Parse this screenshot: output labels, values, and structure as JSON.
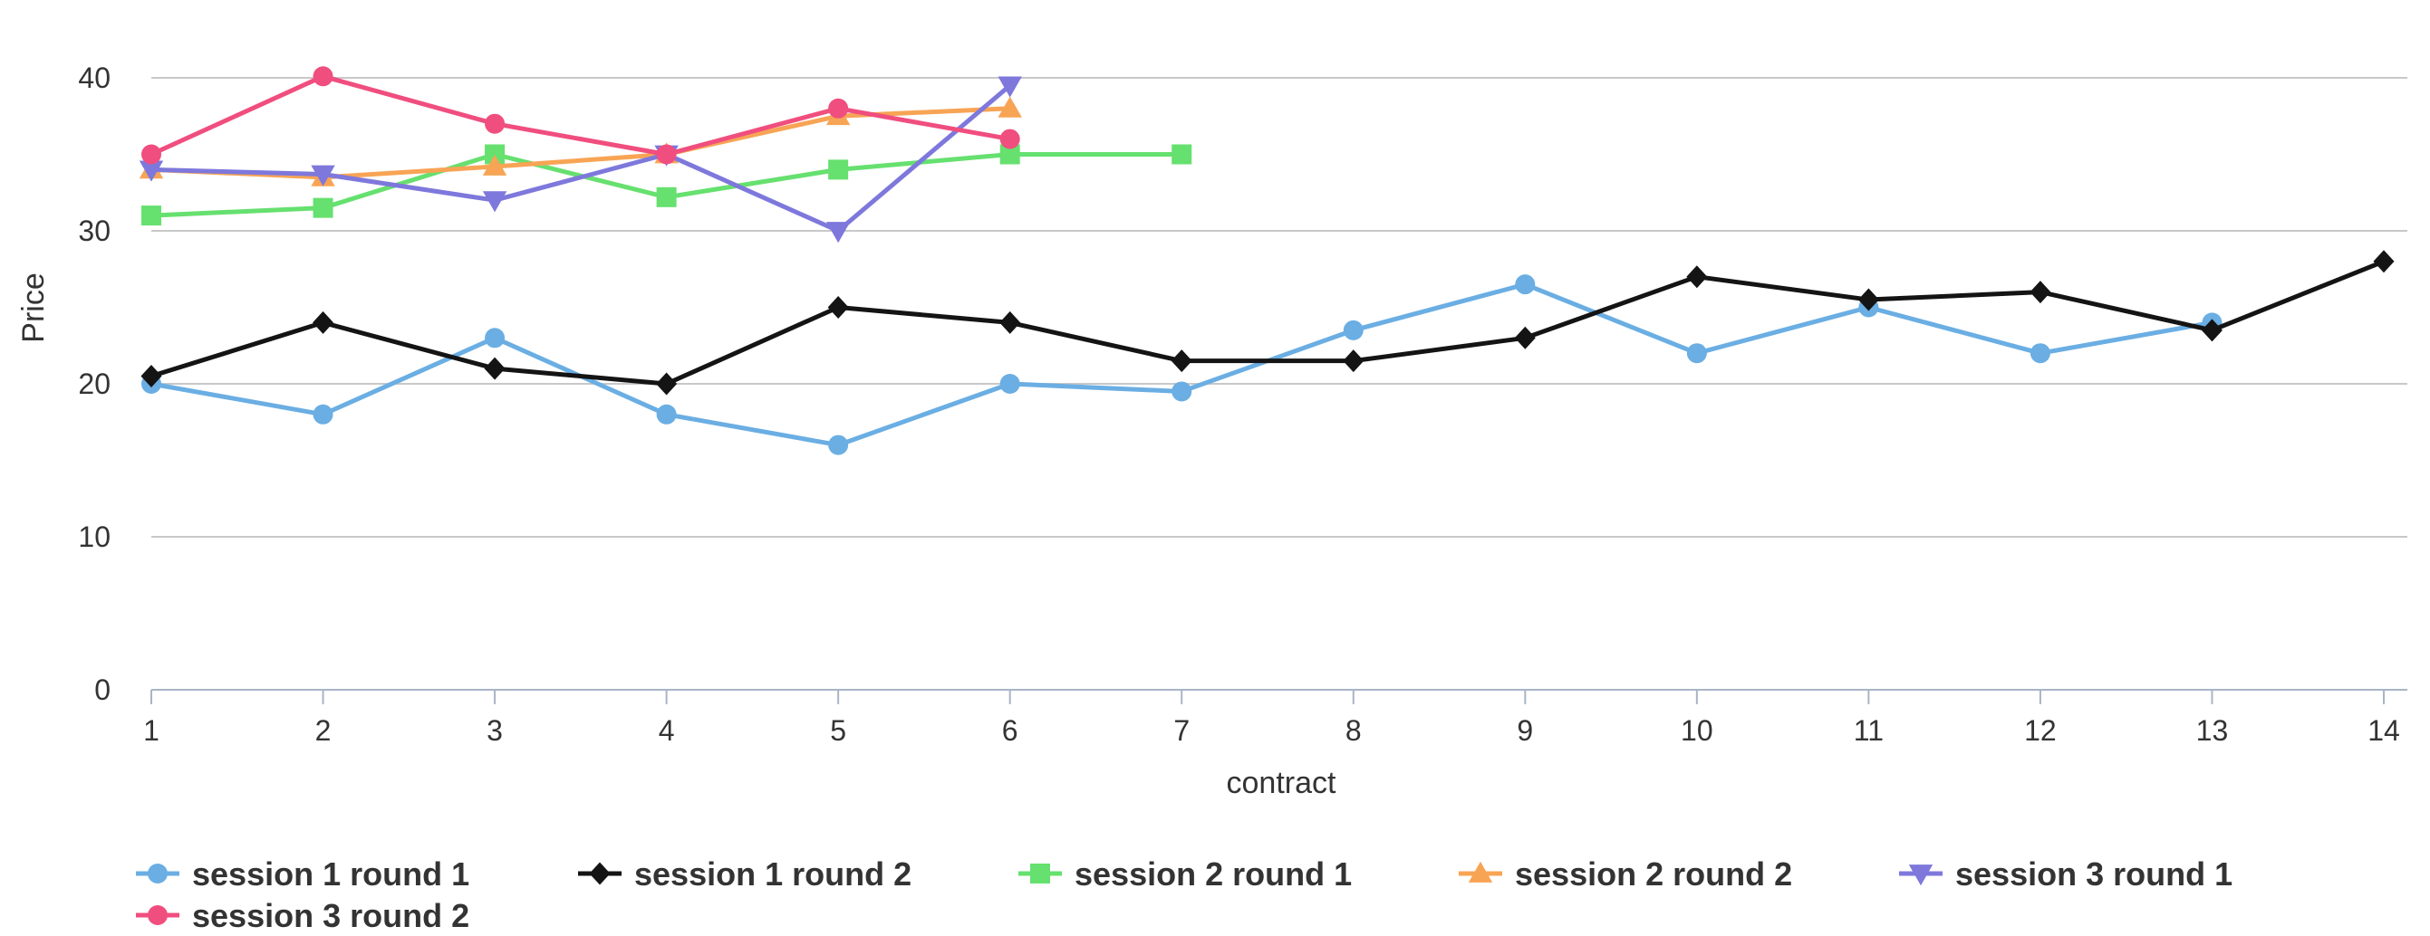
{
  "chart_data": {
    "type": "line",
    "title": "",
    "xlabel": "contract",
    "ylabel": "Price",
    "x_ticks": [
      1,
      2,
      3,
      4,
      5,
      6,
      7,
      8,
      9,
      10,
      11,
      12,
      13,
      14
    ],
    "y_ticks": [
      0,
      10,
      20,
      30,
      40
    ],
    "xlim": [
      1,
      14
    ],
    "ylim": [
      0,
      40
    ],
    "grid": "horizontal",
    "legend_position": "bottom-left",
    "series": [
      {
        "name": "session 1 round 1",
        "color": "#6aaee3",
        "marker": "circle",
        "x": [
          1,
          2,
          3,
          4,
          5,
          6,
          7,
          8,
          9,
          10,
          11,
          12,
          13
        ],
        "values": [
          20,
          18,
          23,
          18,
          16,
          20,
          19.5,
          23.5,
          26.5,
          22,
          25,
          22,
          24
        ]
      },
      {
        "name": "session 1 round 2",
        "color": "#141414",
        "marker": "diamond",
        "x": [
          1,
          2,
          3,
          4,
          5,
          6,
          7,
          8,
          9,
          10,
          11,
          12,
          13,
          14
        ],
        "values": [
          20.5,
          24,
          21,
          20,
          25,
          24,
          21.5,
          21.5,
          23,
          27,
          25.5,
          26,
          23.5,
          28
        ]
      },
      {
        "name": "session 2 round 1",
        "color": "#66e06f",
        "marker": "square",
        "x": [
          1,
          2,
          3,
          4,
          5,
          6,
          7
        ],
        "values": [
          31,
          31.5,
          35,
          32.2,
          34,
          35,
          35
        ]
      },
      {
        "name": "session 2 round 2",
        "color": "#f8a455",
        "marker": "triangle",
        "x": [
          1,
          2,
          3,
          4,
          5,
          6
        ],
        "values": [
          34,
          33.5,
          34.2,
          35,
          37.5,
          38
        ]
      },
      {
        "name": "session 3 round 1",
        "color": "#7e78dc",
        "marker": "triangle-down",
        "x": [
          1,
          2,
          3,
          4,
          5,
          6
        ],
        "values": [
          34,
          33.7,
          32,
          35,
          30,
          39.5
        ]
      },
      {
        "name": "session 3 round 2",
        "color": "#f04e7e",
        "marker": "circle",
        "x": [
          1,
          2,
          3,
          4,
          5,
          6
        ],
        "values": [
          35,
          40.1,
          37,
          35,
          38,
          36
        ]
      }
    ]
  }
}
